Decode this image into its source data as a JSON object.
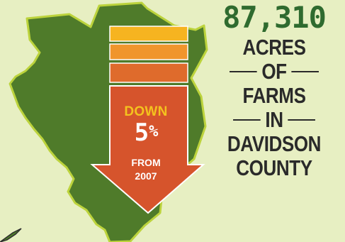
{
  "colors": {
    "background": "#e7efc2",
    "map_fill": "#4f7b2a",
    "map_outline": "#bcd33c",
    "bar_top": "#f6b420",
    "bar_mid": "#f0952c",
    "bar_low": "#df6b2c",
    "arrow": "#d6542c",
    "headline_number": "#2f6b2f",
    "headline_text": "#2a2a2a"
  },
  "icons": {
    "map": "davidson-county-map-shape",
    "arrow": "down-arrow-shape"
  },
  "arrow": {
    "down_label": "DOWN",
    "percent_value": "5",
    "percent_sign": "%",
    "from_label": "FROM",
    "year_label": "2007"
  },
  "headline": {
    "number": "87,310",
    "line1": "ACRES",
    "line2": "OF",
    "line3": "FARMS",
    "line4": "IN",
    "line5": "DAVIDSON",
    "line6": "COUNTY"
  }
}
